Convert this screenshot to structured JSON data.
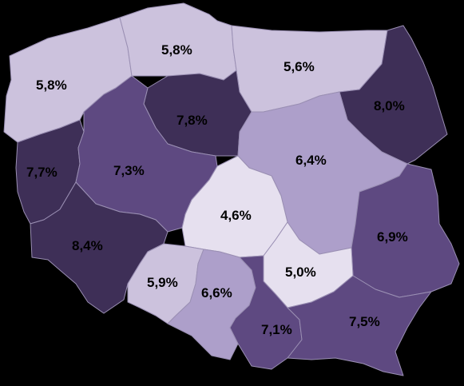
{
  "map": {
    "palette": {
      "very_light": "#e6e0ef",
      "light": "#ccc2dd",
      "medium_light": "#ad9fca",
      "medium_dark": "#5e4981",
      "dark": "#3e2f57",
      "border": "#9a8fb3",
      "background": "#000000",
      "label_text": "#000000"
    },
    "regions": [
      {
        "id": "zachodniopomorskie",
        "label": "5,8%",
        "shade": "light"
      },
      {
        "id": "pomorskie",
        "label": "5,8%",
        "shade": "light"
      },
      {
        "id": "warminsko-mazurskie",
        "label": "5,6%",
        "shade": "light"
      },
      {
        "id": "podlaskie",
        "label": "8,0%",
        "shade": "dark"
      },
      {
        "id": "kujawsko-pomorskie",
        "label": "7,8%",
        "shade": "dark"
      },
      {
        "id": "lubuskie",
        "label": "7,7%",
        "shade": "dark"
      },
      {
        "id": "wielkopolskie",
        "label": "7,3%",
        "shade": "medium_dark"
      },
      {
        "id": "mazowieckie",
        "label": "6,4%",
        "shade": "medium_light"
      },
      {
        "id": "lodzkie",
        "label": "4,6%",
        "shade": "very_light"
      },
      {
        "id": "lubelskie",
        "label": "6,9%",
        "shade": "medium_dark"
      },
      {
        "id": "dolnoslaskie",
        "label": "8,4%",
        "shade": "dark"
      },
      {
        "id": "swietokrzyskie",
        "label": "5,0%",
        "shade": "very_light"
      },
      {
        "id": "opolskie",
        "label": "5,9%",
        "shade": "light"
      },
      {
        "id": "slaskie",
        "label": "6,6%",
        "shade": "medium_light"
      },
      {
        "id": "malopolskie",
        "label": "7,1%",
        "shade": "medium_dark"
      },
      {
        "id": "podkarpackie",
        "label": "7,5%",
        "shade": "medium_dark"
      }
    ]
  }
}
